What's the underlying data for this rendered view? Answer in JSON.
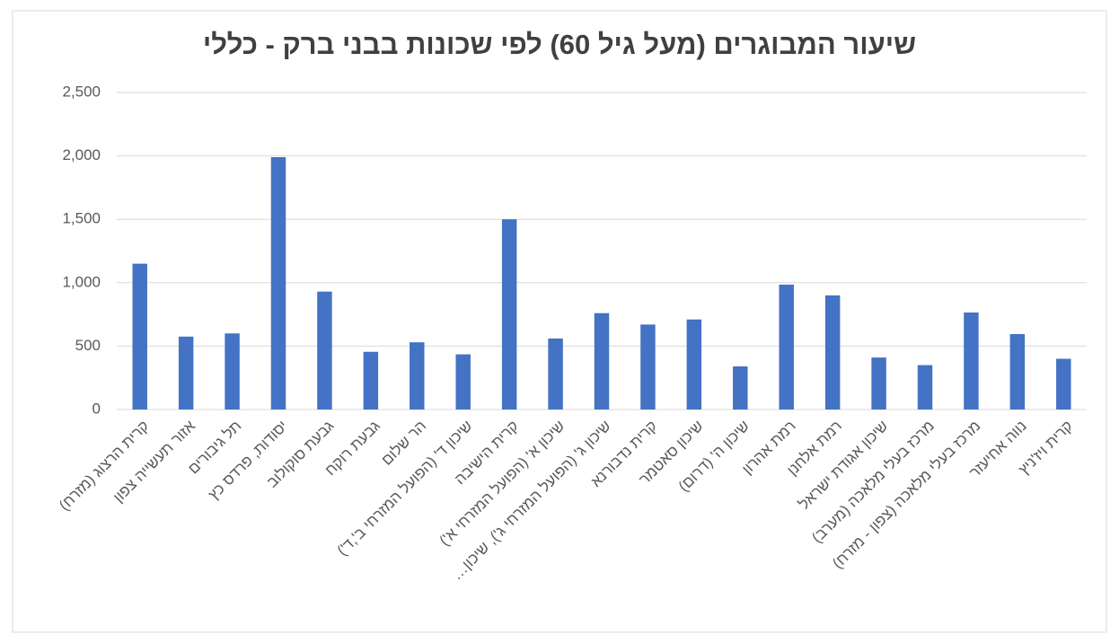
{
  "chart_data": {
    "type": "bar",
    "title": "שיעור המבוגרים (מעל גיל 60) לפי שכונות בבני ברק - כללי",
    "categories": [
      "קרית הרצוג (מזרח)",
      "אזור תעשייה צפון",
      "תל גיבורים",
      "יסודות, פרדס כץ",
      "גבעת סוקולוב",
      "גבעת רוקח",
      "הר שלום",
      "שיכון ד' (הפועל המזרחי ב',ד')",
      "קרית הישיבה",
      "שיכון א' (הפועל המזרחי א')",
      "שיכון ג' (הפועל המזרחי ג'), שיכון…",
      "קרית נדבורנא",
      "שיכון סאטמר",
      "שיכון ה' (דרום)",
      "רמת אהרון",
      "רמת אלחנן",
      "שיכון אגודת ישראל",
      "מרכז בעלי מלאכה (מערב)",
      "מרכז בעלי מלאכה (צפון - מזרח)",
      "נווה אחיעזר",
      "קרית ויז'ניץ"
    ],
    "values": [
      1150,
      575,
      600,
      1990,
      930,
      455,
      530,
      435,
      1500,
      560,
      760,
      670,
      710,
      340,
      985,
      900,
      410,
      350,
      765,
      595,
      400
    ],
    "color": "#4472c4",
    "ylim": [
      0,
      2500
    ],
    "yticks": [
      0,
      {
        "value": 500,
        "label": "500"
      },
      {
        "value": 1000,
        "label": "1,000"
      },
      {
        "value": 1500,
        "label": "1,500"
      },
      {
        "value": 2000,
        "label": "2,000"
      },
      {
        "value": 2500,
        "label": "2,500"
      }
    ],
    "grid": true
  }
}
